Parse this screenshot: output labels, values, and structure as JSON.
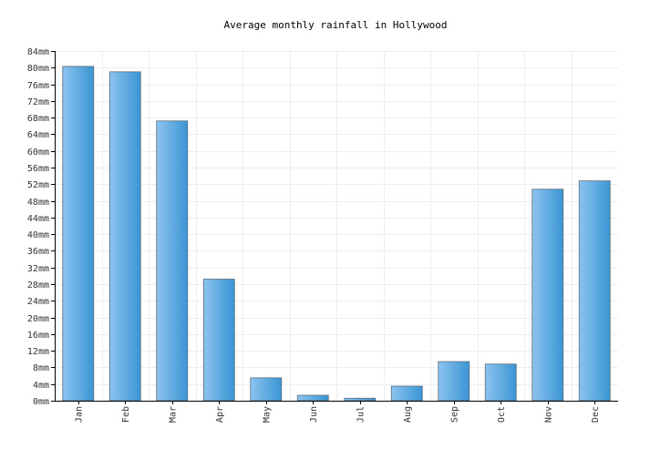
{
  "colors": {
    "bar_light": "#8cc3ef",
    "bar_dark": "#3a95d4",
    "grid": "#eeeeee",
    "axis": "#000000"
  },
  "chart_data": {
    "type": "bar",
    "title": "Average monthly rainfall in Hollywood",
    "xlabel": "",
    "ylabel": "",
    "categories": [
      "Jan",
      "Feb",
      "Mar",
      "Apr",
      "May",
      "Jun",
      "Jul",
      "Aug",
      "Sep",
      "Oct",
      "Nov",
      "Dec"
    ],
    "values": [
      80.3,
      79.0,
      67.2,
      29.2,
      5.5,
      1.3,
      0.6,
      3.5,
      9.4,
      8.8,
      50.8,
      52.8
    ],
    "ylim": [
      0,
      84
    ],
    "ytick_step": 4,
    "yticks": [
      "0mm",
      "4mm",
      "8mm",
      "12mm",
      "16mm",
      "20mm",
      "24mm",
      "28mm",
      "32mm",
      "36mm",
      "40mm",
      "44mm",
      "48mm",
      "52mm",
      "56mm",
      "60mm",
      "64mm",
      "68mm",
      "72mm",
      "76mm",
      "80mm",
      "84mm"
    ],
    "grid": true,
    "legend": "none"
  }
}
